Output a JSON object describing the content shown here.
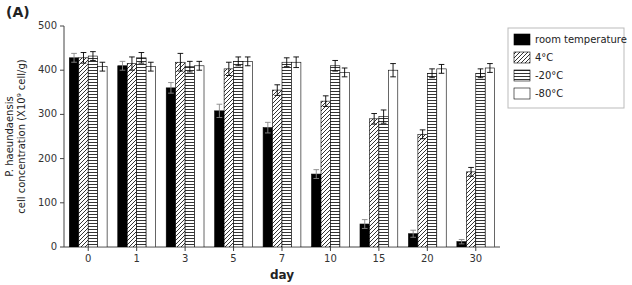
{
  "chart_data": {
    "type": "bar",
    "title": "(A)",
    "x_label": "day",
    "y_label": "P. haeundaensis\ncell concentration (X10⁹ cell/g)",
    "categories": [
      "0",
      "1",
      "3",
      "5",
      "7",
      "10",
      "15",
      "20",
      "30"
    ],
    "series": [
      {
        "name": "room temperature",
        "color": "black",
        "values": [
          428,
          410,
          360,
          308,
          270,
          165,
          52,
          30,
          12
        ],
        "errors": [
          10,
          10,
          12,
          15,
          12,
          10,
          10,
          8,
          5
        ]
      },
      {
        "name": "4°C",
        "color": "white",
        "values": [
          428,
          415,
          418,
          403,
          355,
          330,
          290,
          255,
          170
        ],
        "errors": [
          12,
          15,
          20,
          15,
          12,
          12,
          12,
          10,
          10
        ]
      },
      {
        "name": "-20°C",
        "color": "white",
        "values": [
          432,
          428,
          408,
          420,
          418,
          410,
          295,
          393,
          393
        ],
        "errors": [
          10,
          12,
          12,
          10,
          10,
          12,
          15,
          10,
          10
        ]
      },
      {
        "name": "-80°C",
        "color": "white",
        "values": [
          408,
          408,
          410,
          420,
          418,
          395,
          400,
          403,
          405
        ],
        "errors": [
          10,
          10,
          10,
          10,
          12,
          10,
          15,
          10,
          10
        ]
      }
    ],
    "ylim": [
      0,
      500
    ],
    "yticks": [
      0,
      100,
      200,
      300,
      400,
      500
    ],
    "grid": false,
    "legend": "right"
  }
}
